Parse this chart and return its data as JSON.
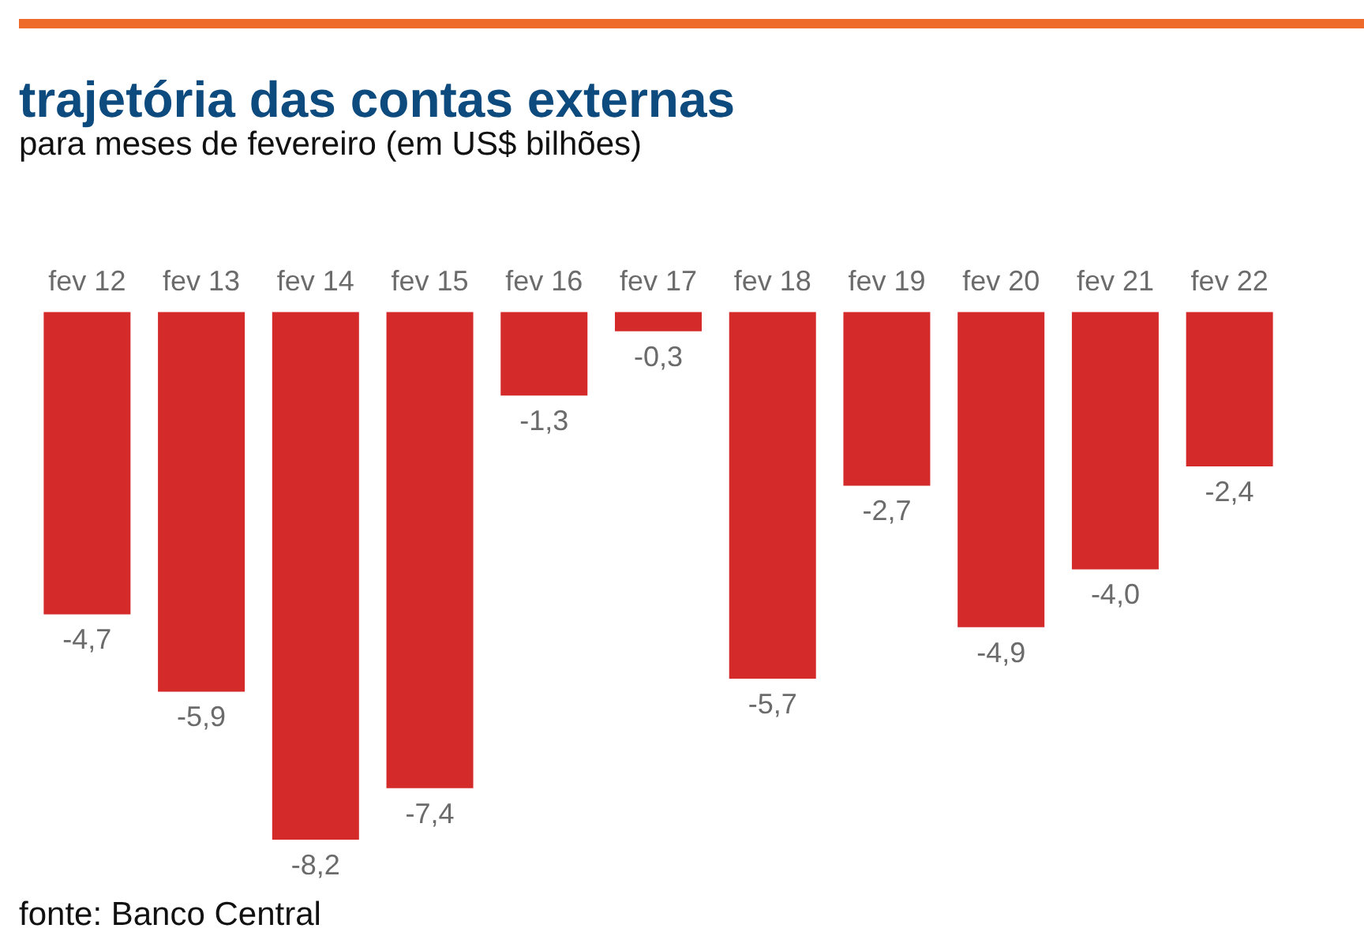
{
  "chart_data": {
    "type": "bar",
    "title": "trajetória das contas externas",
    "subtitle": "para meses de fevereiro (em US$ bilhões)",
    "categories": [
      "fev 12",
      "fev 13",
      "fev 14",
      "fev 15",
      "fev 16",
      "fev 17",
      "fev 18",
      "fev 19",
      "fev 20",
      "fev 21",
      "fev 22"
    ],
    "values": [
      -4.7,
      -5.9,
      -8.2,
      -7.4,
      -1.3,
      -0.3,
      -5.7,
      -2.7,
      -4.9,
      -4.0,
      -2.4
    ],
    "value_labels": [
      "-4,7",
      "-5,9",
      "-8,2",
      "-7,4",
      "-1,3",
      "-0,3",
      "-5,7",
      "-2,7",
      "-4,9",
      "-4,0",
      "-2,4"
    ],
    "color": "#d42a2a",
    "annotations": [
      "fonte: Banco Central"
    ]
  }
}
